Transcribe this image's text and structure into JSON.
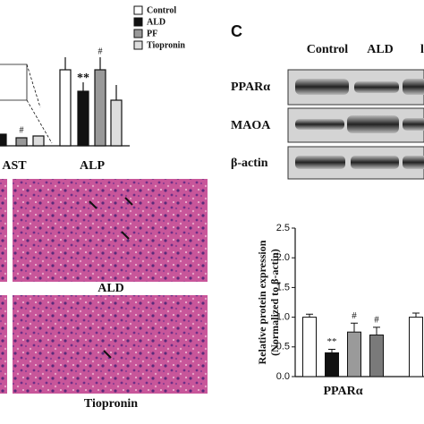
{
  "figure": {
    "panel_label": "C",
    "legend": [
      "Control",
      "ALD",
      "PF",
      "Tiopronin"
    ],
    "top_chart_labels": [
      "AST",
      "ALP"
    ],
    "top_chart_annotations": [
      "**",
      "#",
      "#"
    ],
    "blot_columns": [
      "Control",
      "ALD",
      "l"
    ],
    "blot_rows": [
      "PPARα",
      "MAOA",
      "β-actin"
    ],
    "histology_labels": [
      "ALD",
      "Tiopronin"
    ]
  },
  "chart_data": {
    "type": "bar",
    "y_label": [
      "Relative protein expression",
      "(Normalized to β-actin)"
    ],
    "categories": [
      "PPARα",
      null
    ],
    "ylim": [
      0,
      2.5
    ],
    "yticks": [
      {
        "value": 0,
        "label": "0.0"
      },
      {
        "value": 0.5,
        "label": "0.5"
      },
      {
        "value": 1,
        "label": "1.0"
      },
      {
        "value": 1.5,
        "label": "1.5"
      },
      {
        "value": 2,
        "label": "2.0"
      },
      {
        "value": 2.5,
        "label": "2.5"
      }
    ],
    "series": [
      {
        "name": "Control",
        "color": "#ffffff",
        "values": [
          1.0,
          1.0
        ],
        "errors": [
          0.05,
          0.07
        ],
        "labels": [
          null,
          null
        ]
      },
      {
        "name": "ALD",
        "color": "#111111",
        "values": [
          0.4,
          null
        ],
        "errors": [
          0.06,
          null
        ],
        "labels": [
          "**",
          null
        ]
      },
      {
        "name": "PF",
        "color": "#9a9a9a",
        "values": [
          0.75,
          null
        ],
        "errors": [
          0.15,
          null
        ],
        "labels": [
          "#",
          null
        ]
      },
      {
        "name": "Tiopronin",
        "color": "#7a7a7a",
        "values": [
          0.7,
          null
        ],
        "errors": [
          0.13,
          null
        ],
        "labels": [
          "#",
          null
        ]
      }
    ]
  }
}
